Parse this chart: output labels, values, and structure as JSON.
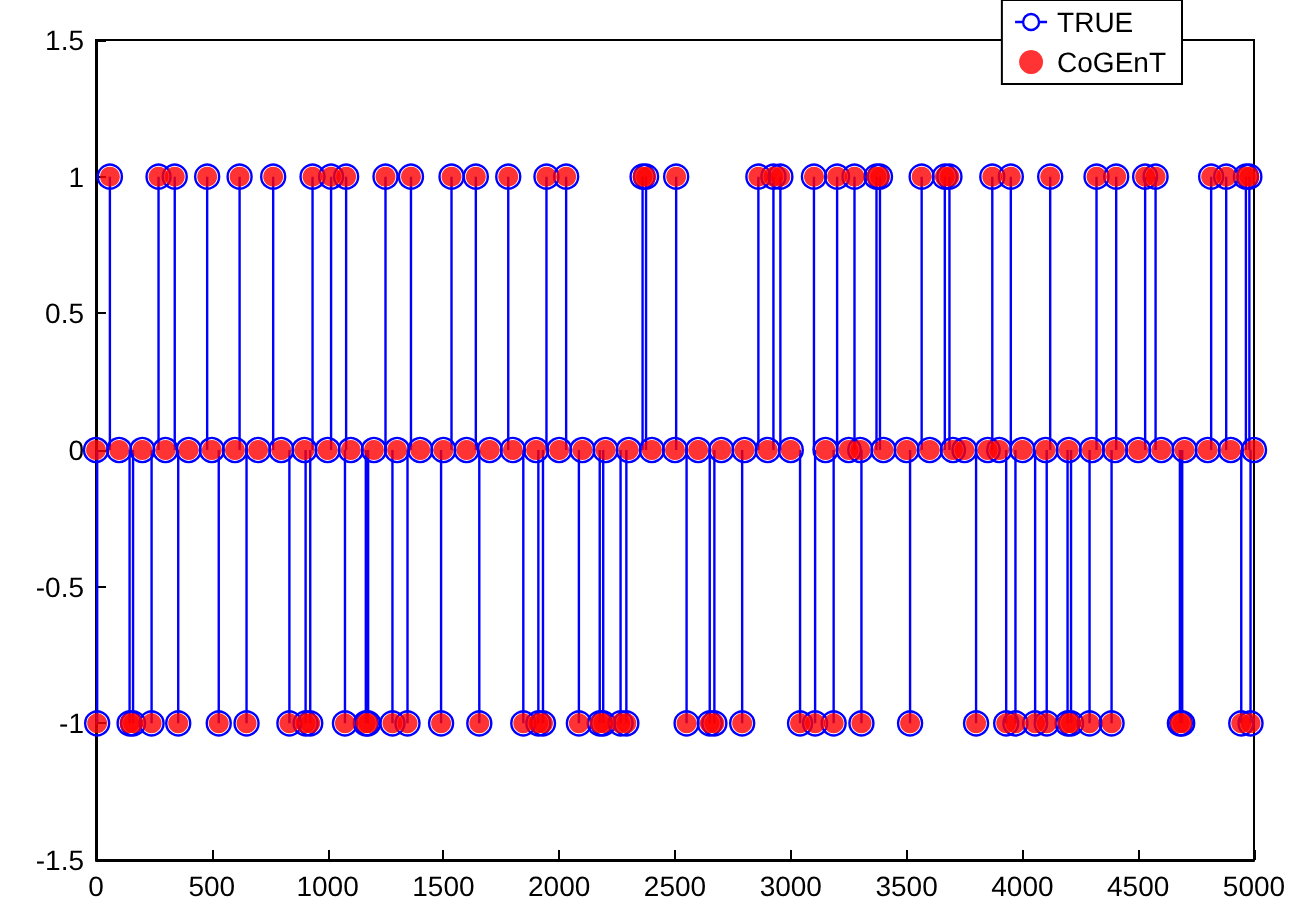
{
  "chart_data": {
    "type": "lollipop",
    "marker": "circle",
    "legend": "top right",
    "grid": false,
    "xlim": [
      0,
      5000
    ],
    "xticks": [
      0,
      500,
      {
        "value": 1000,
        "label": "1000"
      },
      {
        "value": 1500,
        "label": "1500"
      },
      {
        "value": 2000,
        "label": "2000"
      },
      {
        "value": 2500,
        "label": "2500"
      },
      {
        "value": 3000,
        "label": "3000"
      },
      {
        "value": 3500,
        "label": "3500"
      },
      {
        "value": 4000,
        "label": "4000"
      },
      {
        "value": 4500,
        "label": "4500"
      },
      {
        "value": 5000,
        "label": "5000"
      }
    ],
    "ylim": [
      -1.5,
      1.5
    ],
    "yticks": [
      -1.5,
      -1,
      -0.5,
      0,
      0.5,
      1,
      1.5
    ],
    "x": [
      0,
      5,
      60,
      100,
      145,
      160,
      200,
      240,
      270,
      300,
      340,
      355,
      400,
      480,
      500,
      530,
      600,
      620,
      650,
      700,
      765,
      800,
      835,
      900,
      905,
      925,
      935,
      1000,
      1015,
      1075,
      1080,
      1100,
      1165,
      1175,
      1200,
      1250,
      1280,
      1300,
      1345,
      1360,
      1400,
      1490,
      1500,
      1535,
      1600,
      1640,
      1655,
      1700,
      1780,
      1800,
      1845,
      1900,
      1910,
      1930,
      1945,
      2000,
      2030,
      2085,
      2100,
      2175,
      2190,
      2200,
      2265,
      2290,
      2300,
      2360,
      2375,
      2400,
      2500,
      2505,
      2550,
      2600,
      2650,
      2670,
      2700,
      2790,
      2800,
      2860,
      2900,
      2925,
      2955,
      3000,
      3040,
      3100,
      3105,
      3150,
      3185,
      3200,
      3250,
      3275,
      3300,
      3305,
      3370,
      3385,
      3400,
      3500,
      3515,
      3565,
      3600,
      3665,
      3685,
      3700,
      3750,
      3800,
      3850,
      3870,
      3900,
      3930,
      3950,
      3970,
      4000,
      4055,
      4100,
      4105,
      4120,
      4195,
      4200,
      4210,
      4290,
      4300,
      4320,
      4385,
      4400,
      4405,
      4500,
      4530,
      4575,
      4600,
      4680,
      4690,
      4700,
      4800,
      4815,
      4880,
      4900,
      4945,
      4965,
      4980,
      4985,
      5000
    ],
    "series": [
      {
        "name": "TRUE",
        "color": "#0000ff",
        "values": [
          0,
          -1,
          1,
          0,
          -1,
          -1,
          0,
          -1,
          1,
          0,
          1,
          -1,
          0,
          1,
          0,
          -1,
          0,
          1,
          -1,
          0,
          1,
          0,
          -1,
          0,
          -1,
          -1,
          1,
          0,
          1,
          -1,
          1,
          0,
          -1,
          -1,
          0,
          1,
          -1,
          0,
          -1,
          1,
          0,
          -1,
          0,
          1,
          0,
          1,
          -1,
          0,
          1,
          0,
          -1,
          0,
          -1,
          -1,
          1,
          0,
          1,
          -1,
          0,
          -1,
          -1,
          0,
          -1,
          -1,
          0,
          1,
          1,
          0,
          0,
          1,
          -1,
          0,
          -1,
          -1,
          0,
          -1,
          0,
          1,
          0,
          1,
          1,
          0,
          -1,
          1,
          -1,
          0,
          -1,
          1,
          0,
          1,
          0,
          -1,
          1,
          1,
          0,
          0,
          -1,
          1,
          0,
          1,
          1,
          0,
          0,
          -1,
          0,
          1,
          0,
          -1,
          1,
          -1,
          0,
          -1,
          0,
          -1,
          1,
          -1,
          0,
          -1,
          -1,
          0,
          1,
          -1,
          0,
          1,
          0,
          1,
          1,
          0,
          -1,
          -1,
          0,
          0,
          1,
          1,
          0,
          -1,
          1,
          1,
          -1,
          0
        ]
      },
      {
        "name": "CoGEnT",
        "type": "scatter",
        "color": "#ff0000",
        "values": [
          0,
          -1,
          1,
          0,
          -1,
          -1,
          0,
          -1,
          1,
          0,
          1,
          -1,
          0,
          1,
          0,
          -1,
          0,
          1,
          -1,
          0,
          1,
          0,
          -1,
          0,
          -1,
          -1,
          1,
          0,
          1,
          -1,
          1,
          0,
          -1,
          -1,
          0,
          1,
          -1,
          0,
          -1,
          1,
          0,
          -1,
          0,
          1,
          0,
          1,
          -1,
          0,
          1,
          0,
          -1,
          0,
          -1,
          -1,
          1,
          0,
          1,
          -1,
          0,
          -1,
          -1,
          0,
          -1,
          -1,
          0,
          1,
          1,
          0,
          0,
          1,
          -1,
          0,
          -1,
          -1,
          0,
          -1,
          0,
          1,
          0,
          1,
          1,
          0,
          -1,
          1,
          -1,
          0,
          -1,
          1,
          0,
          1,
          0,
          -1,
          1,
          1,
          0,
          0,
          -1,
          1,
          0,
          1,
          1,
          0,
          0,
          -1,
          0,
          1,
          0,
          -1,
          1,
          -1,
          0,
          -1,
          0,
          -1,
          1,
          -1,
          0,
          -1,
          -1,
          0,
          1,
          -1,
          0,
          1,
          0,
          1,
          1,
          0,
          -1,
          -1,
          0,
          0,
          1,
          1,
          0,
          -1,
          1,
          1,
          -1,
          0
        ]
      }
    ]
  }
}
